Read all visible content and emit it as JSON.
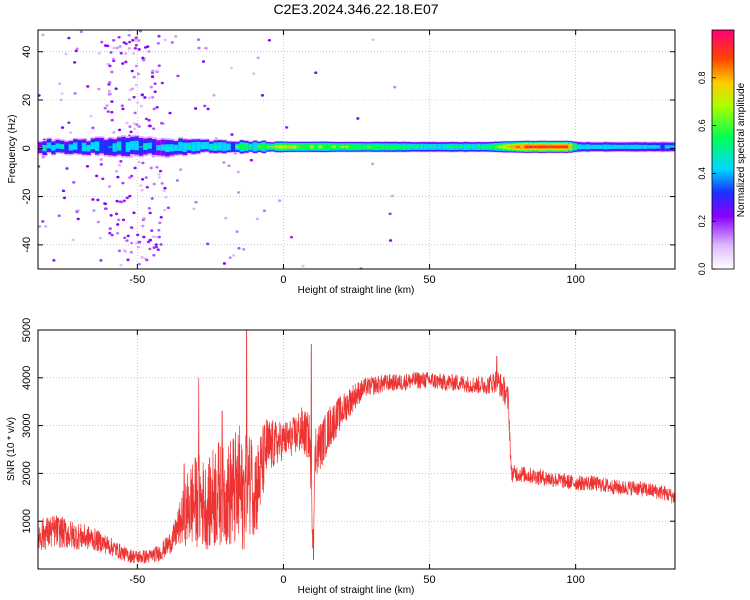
{
  "chart_data": [
    {
      "type": "heatmap",
      "title": "C2E3.2024.346.22.18.E07",
      "xlabel": "Height of straight line (km)",
      "ylabel": "Frequency (Hz)",
      "xlim": [
        -84,
        134
      ],
      "ylim": [
        -50,
        49
      ],
      "xticks": [
        -50,
        0,
        50,
        100
      ],
      "yticks": [
        -40,
        -20,
        0,
        20,
        40
      ],
      "grid": true,
      "colorbar": {
        "label": "Normalized spectral amplitude",
        "range": [
          0,
          1
        ],
        "ticks": [
          "0.0",
          "0.2",
          "0.4",
          "0.6",
          "0.8"
        ]
      },
      "band": {
        "center_hz": 0.6,
        "points": [
          {
            "x": -84,
            "halfwidth": 3.5,
            "level": 0.45
          },
          {
            "x": -70,
            "halfwidth": 4,
            "level": 0.5
          },
          {
            "x": -55,
            "halfwidth": 5,
            "level": 0.5
          },
          {
            "x": -42,
            "halfwidth": 4.5,
            "level": 0.45
          },
          {
            "x": -30,
            "halfwidth": 3.5,
            "level": 0.55
          },
          {
            "x": -15,
            "halfwidth": 3,
            "level": 0.6
          },
          {
            "x": 0,
            "halfwidth": 2.5,
            "level": 0.75
          },
          {
            "x": 20,
            "halfwidth": 2.5,
            "level": 0.7
          },
          {
            "x": 50,
            "halfwidth": 2.5,
            "level": 0.55
          },
          {
            "x": 70,
            "halfwidth": 2.5,
            "level": 0.6
          },
          {
            "x": 80,
            "halfwidth": 2.8,
            "level": 0.95
          },
          {
            "x": 97,
            "halfwidth": 2.8,
            "level": 0.95
          },
          {
            "x": 100,
            "halfwidth": 2.5,
            "level": 0.5
          },
          {
            "x": 134,
            "halfwidth": 2.5,
            "level": 0.45
          }
        ]
      }
    },
    {
      "type": "line",
      "xlabel": "Height of straight line (km)",
      "ylabel": "SNR (10 * v/v)",
      "xlim": [
        -84,
        134
      ],
      "ylim": [
        0,
        5000
      ],
      "xticks": [
        -50,
        0,
        50,
        100
      ],
      "yticks": [
        1000,
        2000,
        3000,
        4000,
        5000
      ],
      "grid": true,
      "color": "#ee3333",
      "x": [
        -84,
        -78,
        -72,
        -66,
        -60,
        -54,
        -50,
        -46,
        -42,
        -38,
        -35,
        -32,
        -29,
        -26,
        -23,
        -20,
        -17,
        -14,
        -12,
        -9,
        -6,
        -3,
        0,
        3,
        6,
        9,
        10,
        11,
        13,
        16,
        20,
        24,
        28,
        32,
        36,
        40,
        45,
        50,
        55,
        60,
        65,
        70,
        73,
        76,
        77,
        78,
        80,
        85,
        90,
        95,
        100,
        105,
        110,
        115,
        120,
        125,
        130,
        134
      ],
      "y": [
        700,
        800,
        700,
        650,
        500,
        300,
        250,
        260,
        350,
        600,
        1000,
        1350,
        1450,
        1300,
        1600,
        1500,
        1650,
        1500,
        1800,
        1700,
        2500,
        2600,
        2700,
        2750,
        2900,
        2750,
        700,
        2500,
        2600,
        3000,
        3300,
        3600,
        3800,
        3850,
        3900,
        3900,
        3950,
        3950,
        3900,
        3900,
        3850,
        3850,
        3950,
        3700,
        3500,
        2000,
        2000,
        1950,
        1900,
        1850,
        1800,
        1800,
        1750,
        1700,
        1700,
        1650,
        1600,
        1500
      ],
      "noise": [
        350,
        350,
        300,
        250,
        200,
        150,
        150,
        150,
        180,
        250,
        500,
        900,
        1000,
        900,
        1200,
        1000,
        1300,
        1200,
        1100,
        1000,
        700,
        500,
        400,
        400,
        500,
        500,
        300,
        600,
        500,
        450,
        350,
        300,
        200,
        200,
        180,
        180,
        180,
        180,
        180,
        180,
        180,
        200,
        250,
        300,
        300,
        180,
        180,
        170,
        170,
        160,
        160,
        160,
        160,
        160,
        160,
        160,
        160,
        160
      ],
      "spikes": [
        {
          "x": -34,
          "y": 2200
        },
        {
          "x": -29,
          "y": 4000
        },
        {
          "x": -21,
          "y": 3300
        },
        {
          "x": -15,
          "y": 3000
        },
        {
          "x": -12.6,
          "y": 5000
        },
        {
          "x": -11,
          "y": 2700
        },
        {
          "x": 9.5,
          "y": 4700
        },
        {
          "x": 10.3,
          "y": 200
        },
        {
          "x": 73,
          "y": 4450
        }
      ]
    }
  ]
}
